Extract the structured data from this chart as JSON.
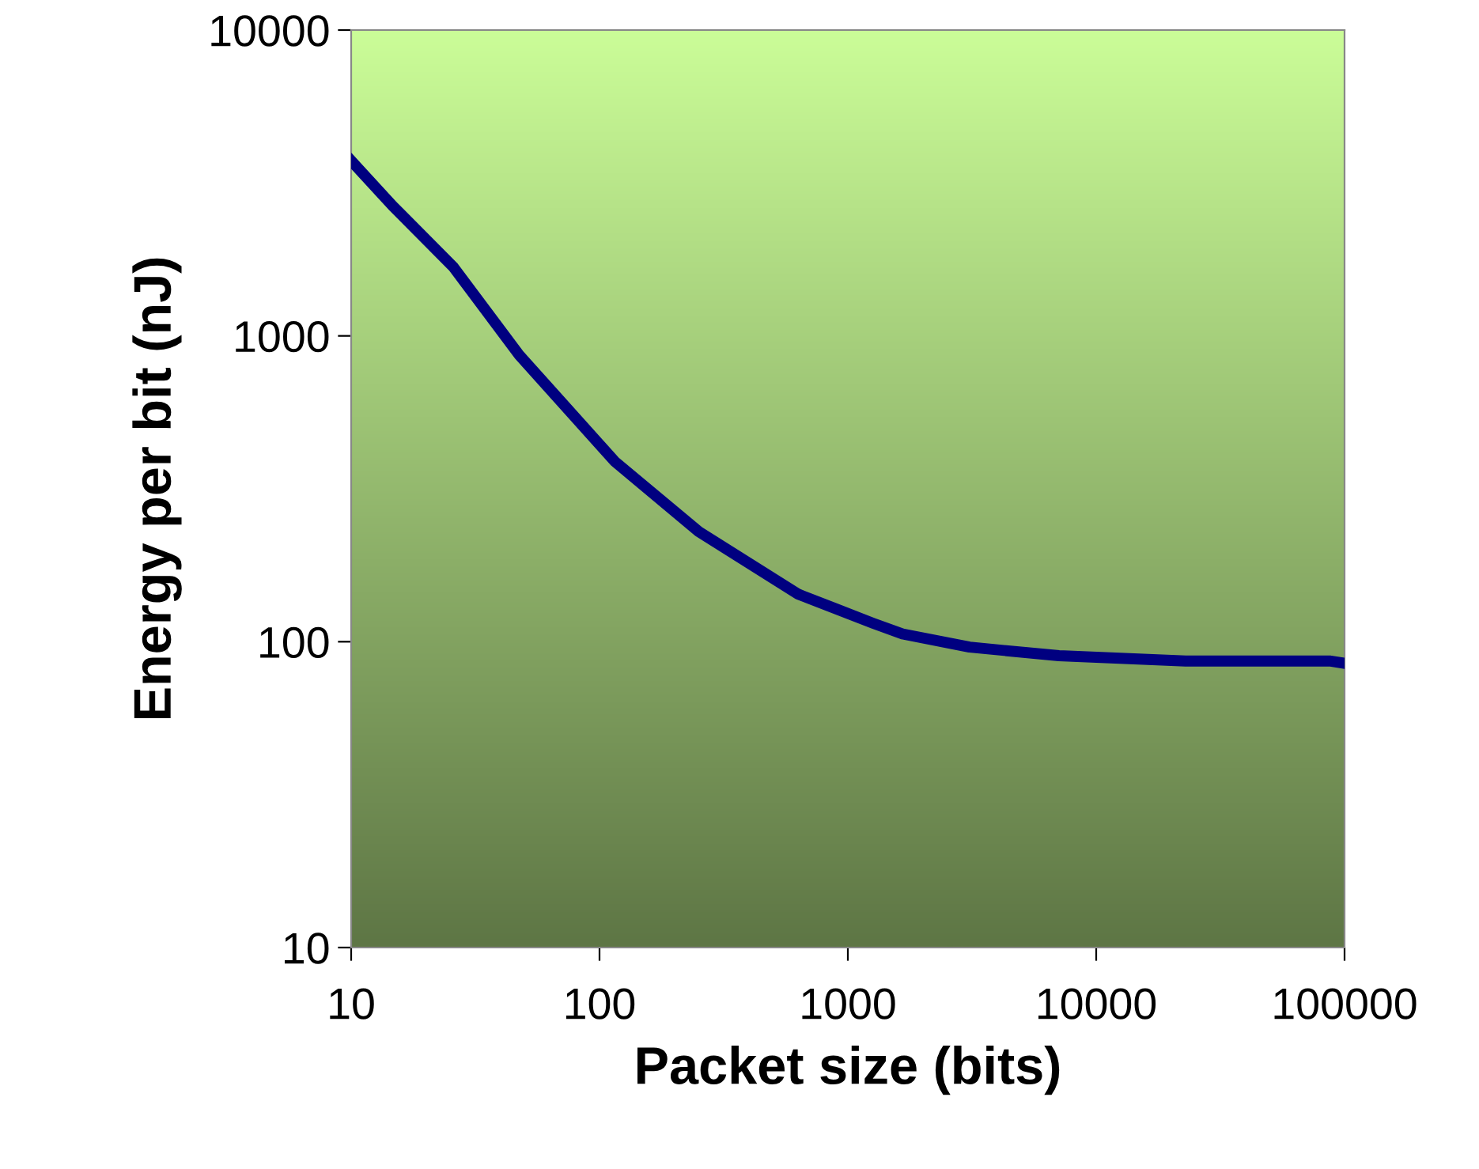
{
  "chart_data": {
    "type": "line",
    "xlabel": "Packet size (bits)",
    "ylabel": "Energy per bit (nJ)",
    "log": "xy",
    "series": [
      {
        "color": "#000080",
        "x": [
          10,
          14.7,
          25.8,
          47.5,
          115,
          251,
          632,
          1260,
          1660,
          3090,
          7080,
          22900,
          87000,
          100000
        ],
        "values": [
          3740,
          2660,
          1680,
          866,
          389,
          229,
          143,
          115,
          106,
          96,
          90,
          86.5,
          86.5,
          85
        ]
      }
    ],
    "xlim": [
      10,
      100000
    ],
    "xticks": [
      10,
      100,
      1000,
      10000,
      100000
    ],
    "ylim": [
      10,
      10000
    ],
    "yticks": [
      10,
      100,
      1000,
      10000
    ],
    "grid": false,
    "marker": "none",
    "line_style": "solid"
  }
}
